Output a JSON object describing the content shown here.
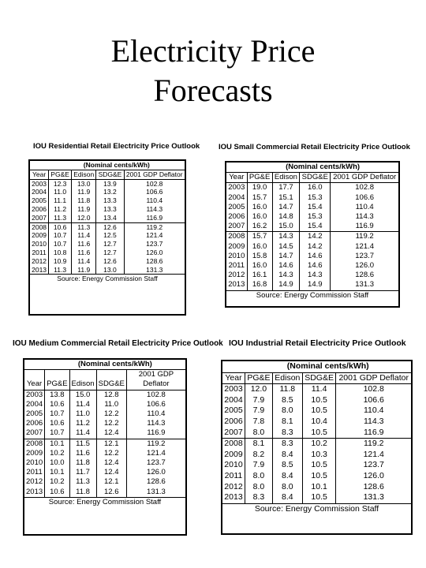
{
  "title_line1": "Electricity Price",
  "title_line2": "Forecasts",
  "tables": [
    {
      "title": "IOU Residential Retail Electricity Price Outlook",
      "unit": "(Nominal cents/kWh)",
      "headers": [
        "Year",
        "PG&E",
        "Edison",
        "SDG&E",
        "2001 GDP Deflator"
      ],
      "rows": [
        [
          "2003",
          "12.3",
          "13.0",
          "13.9",
          "102.8"
        ],
        [
          "2004",
          "11.0",
          "11.9",
          "13.2",
          "106.6"
        ],
        [
          "2005",
          "11.1",
          "11.8",
          "13.3",
          "110.4"
        ],
        [
          "2006",
          "11.2",
          "11.9",
          "13.3",
          "114.3"
        ],
        [
          "2007",
          "11.3",
          "12.0",
          "13.4",
          "116.9"
        ],
        [
          "2008",
          "10.6",
          "11.3",
          "12.6",
          "119.2"
        ],
        [
          "2009",
          "10.7",
          "11.4",
          "12.5",
          "121.4"
        ],
        [
          "2010",
          "10.7",
          "11.6",
          "12.7",
          "123.7"
        ],
        [
          "2011",
          "10.8",
          "11.6",
          "12.7",
          "126.0"
        ],
        [
          "2012",
          "10.9",
          "11.4",
          "12.6",
          "128.6"
        ],
        [
          "2013",
          "11.3",
          "11.9",
          "13.0",
          "131.3"
        ]
      ],
      "source": "Source: Energy Commission Staff"
    },
    {
      "title": "IOU Small Commercial Retail Electricity Price Outlook",
      "unit": "(Nominal cents/kWh)",
      "headers": [
        "Year",
        "PG&E",
        "Edison",
        "SDG&E",
        "2001 GDP Deflator"
      ],
      "rows": [
        [
          "2003",
          "19.0",
          "17.7",
          "16.0",
          "102.8"
        ],
        [
          "2004",
          "15.7",
          "15.1",
          "15.3",
          "106.6"
        ],
        [
          "2005",
          "16.0",
          "14.7",
          "15.4",
          "110.4"
        ],
        [
          "2006",
          "16.0",
          "14.8",
          "15.3",
          "114.3"
        ],
        [
          "2007",
          "16.2",
          "15.0",
          "15.4",
          "116.9"
        ],
        [
          "2008",
          "15.7",
          "14.3",
          "14.2",
          "119.2"
        ],
        [
          "2009",
          "16.0",
          "14.5",
          "14.2",
          "121.4"
        ],
        [
          "2010",
          "15.8",
          "14.7",
          "14.6",
          "123.7"
        ],
        [
          "2011",
          "16.0",
          "14.6",
          "14.6",
          "126.0"
        ],
        [
          "2012",
          "16.1",
          "14.3",
          "14.3",
          "128.6"
        ],
        [
          "2013",
          "16.8",
          "14.9",
          "14.9",
          "131.3"
        ]
      ],
      "source": "Source: Energy Commission Staff"
    },
    {
      "title": "IOU Medium Commercial Retail Electricity Price Outlook",
      "unit": "(Nominal cents/kWh)",
      "headers": [
        "Year",
        "PG&E",
        "Edison",
        "SDG&E",
        "2001 GDP Deflator"
      ],
      "rows": [
        [
          "2003",
          "13.8",
          "15.0",
          "12.8",
          "102.8"
        ],
        [
          "2004",
          "10.6",
          "11.4",
          "11.0",
          "106.6"
        ],
        [
          "2005",
          "10.7",
          "11.0",
          "12.2",
          "110.4"
        ],
        [
          "2006",
          "10.6",
          "11.2",
          "12.2",
          "114.3"
        ],
        [
          "2007",
          "10.7",
          "11.4",
          "12.4",
          "116.9"
        ],
        [
          "2008",
          "10.1",
          "11.5",
          "12.1",
          "119.2"
        ],
        [
          "2009",
          "10.2",
          "11.6",
          "12.2",
          "121.4"
        ],
        [
          "2010",
          "10.0",
          "11.8",
          "12.4",
          "123.7"
        ],
        [
          "2011",
          "10.1",
          "11.7",
          "12.4",
          "126.0"
        ],
        [
          "2012",
          "10.2",
          "11.3",
          "12.1",
          "128.6"
        ],
        [
          "2013",
          "10.6",
          "11.8",
          "12.6",
          "131.3"
        ]
      ],
      "source": "Source: Energy Commission Staff"
    },
    {
      "title": "IOU Industrial Retail Electricity Price Outlook",
      "unit": "(Nominal cents/kWh)",
      "headers": [
        "Year",
        "PG&E",
        "Edison",
        "SDG&E",
        "2001 GDP Deflator"
      ],
      "rows": [
        [
          "2003",
          "12.0",
          "11.8",
          "11.4",
          "102.8"
        ],
        [
          "2004",
          "7.9",
          "8.5",
          "10.5",
          "106.6"
        ],
        [
          "2005",
          "7.9",
          "8.0",
          "10.5",
          "110.4"
        ],
        [
          "2006",
          "7.8",
          "8.1",
          "10.4",
          "114.3"
        ],
        [
          "2007",
          "8.0",
          "8.3",
          "10.5",
          "116.9"
        ],
        [
          "2008",
          "8.1",
          "8.3",
          "10.2",
          "119.2"
        ],
        [
          "2009",
          "8.2",
          "8.4",
          "10.3",
          "121.4"
        ],
        [
          "2010",
          "7.9",
          "8.5",
          "10.5",
          "123.7"
        ],
        [
          "2011",
          "8.0",
          "8.4",
          "10.5",
          "126.0"
        ],
        [
          "2012",
          "8.0",
          "8.0",
          "10.1",
          "128.6"
        ],
        [
          "2013",
          "8.3",
          "8.4",
          "10.5",
          "131.3"
        ]
      ],
      "source": "Source: Energy Commission Staff"
    }
  ]
}
